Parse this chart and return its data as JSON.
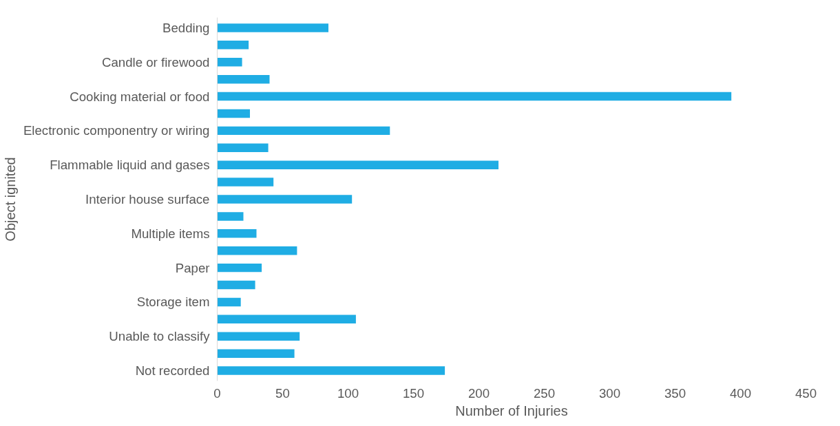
{
  "chart_data": {
    "type": "bar",
    "orientation": "horizontal",
    "xlabel": "Number of Injuries",
    "ylabel": "Object ignited",
    "categories": [
      "Bedding",
      null,
      "Candle or firewood",
      null,
      "Cooking material or food",
      null,
      "Electronic componentry or wiring",
      null,
      "Flammable liquid and gases",
      null,
      "Interior house surface",
      null,
      "Multiple items",
      null,
      "Paper",
      null,
      "Storage item",
      null,
      "Unable to classify",
      null,
      "Not recorded"
    ],
    "values": [
      85,
      24,
      19,
      40,
      393,
      25,
      132,
      39,
      215,
      43,
      103,
      20,
      30,
      61,
      34,
      29,
      18,
      106,
      63,
      59,
      174
    ],
    "color": "#1fade4",
    "xlim": [
      0,
      450
    ],
    "xticks": [
      0,
      50,
      100,
      150,
      200,
      250,
      300,
      350,
      400,
      450
    ],
    "grid": false
  }
}
